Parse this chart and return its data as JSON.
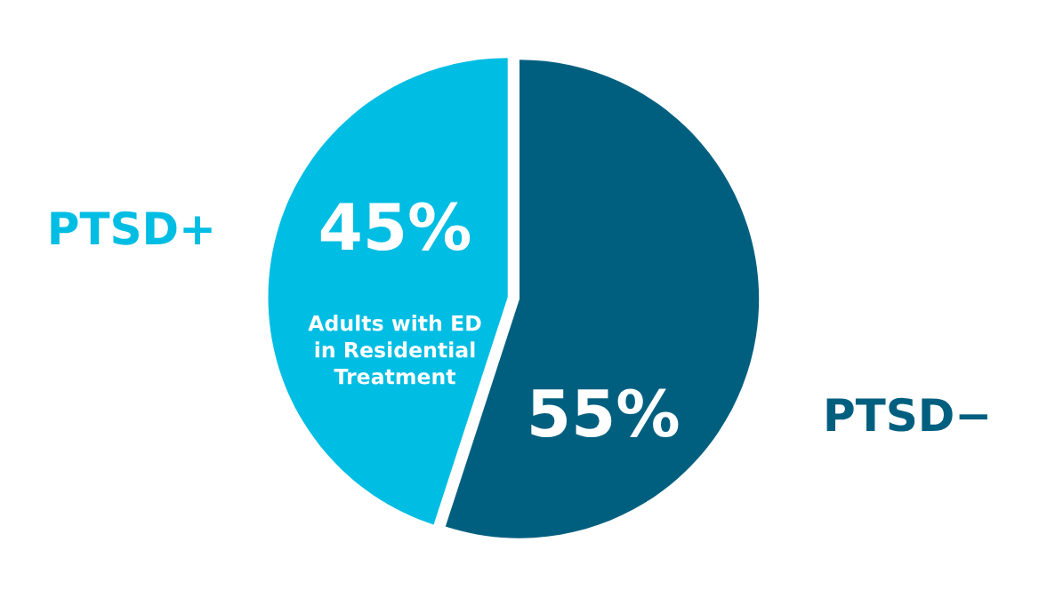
{
  "chart_data": {
    "type": "pie",
    "categories": [
      "PTSD+",
      "PTSD−"
    ],
    "values": [
      45,
      55
    ],
    "colors": [
      "#00bde3",
      "#005f7f"
    ],
    "value_labels": [
      "45%",
      "55%"
    ],
    "annotations": [
      "Adults with ED\nin Residential\nTreatment"
    ],
    "legend": false
  }
}
